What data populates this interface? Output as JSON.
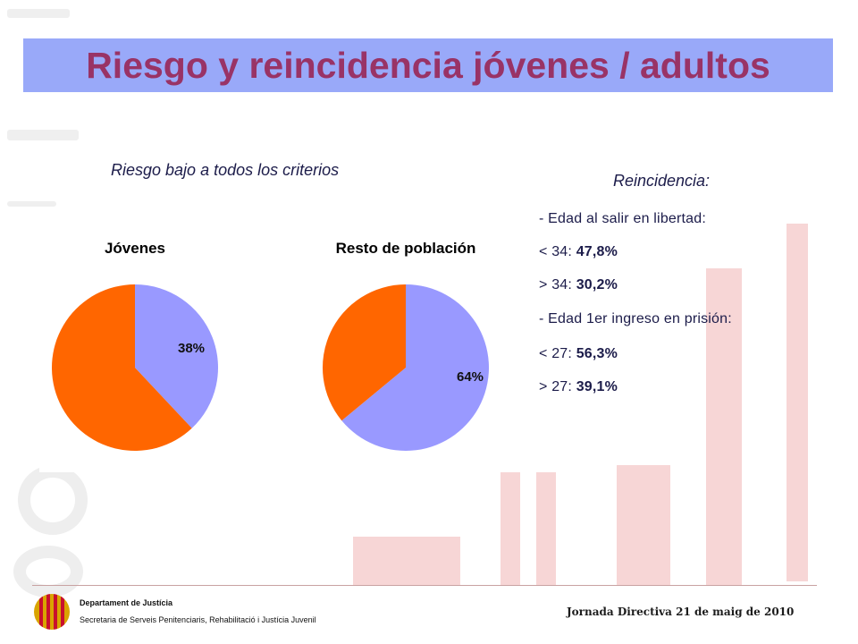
{
  "title": "Riesgo y reincidencia jóvenes / adultos",
  "subtitle": "Riesgo bajo a todos los criterios",
  "colors": {
    "blue_slice": "#9999ff",
    "orange_slice": "#ff6600",
    "title_bar": "#99a9f9",
    "title_text": "#993366"
  },
  "chart_data": [
    {
      "type": "pie",
      "title": "Jóvenes",
      "slices": [
        {
          "label": "38%",
          "value": 38,
          "color": "#9999ff"
        },
        {
          "value": 62,
          "color": "#ff6600"
        }
      ]
    },
    {
      "type": "pie",
      "title": "Resto de población",
      "slices": [
        {
          "label": "64%",
          "value": 64,
          "color": "#9999ff"
        },
        {
          "value": 36,
          "color": "#ff6600"
        }
      ]
    }
  ],
  "reincidencia": {
    "title": "Reincidencia:",
    "lines": [
      {
        "text": "- Edad al salir en libertad:",
        "value": ""
      },
      {
        "text": "< 34: ",
        "value": "47,8%"
      },
      {
        "text": "> 34: ",
        "value": "30,2%"
      },
      {
        "text": "- Edad 1er ingreso en prisión:",
        "value": ""
      },
      {
        "text": "< 27: ",
        "value": "56,3%"
      },
      {
        "text": "> 27: ",
        "value": "39,1%"
      }
    ]
  },
  "footer": {
    "department": "Departament de Justícia",
    "secretaria": "Secretaria de Serveis Penitenciaris, Rehabilitació i Justícia Juvenil",
    "event": "Jornada Directiva 21 de maig de 2010"
  }
}
